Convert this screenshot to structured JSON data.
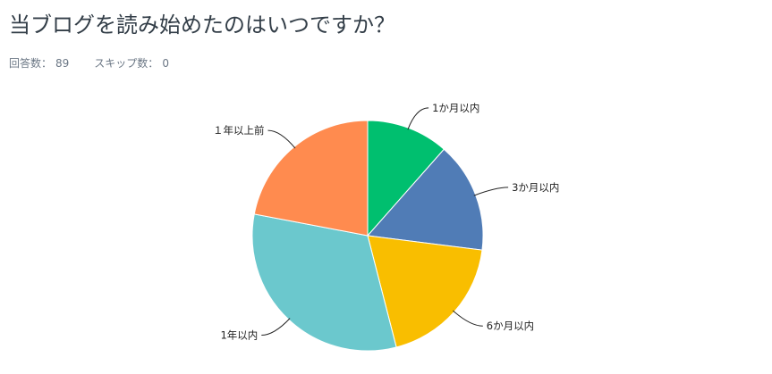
{
  "header": {
    "title": "当ブログを読み始めたのはいつですか？",
    "answered_label": "回答数：",
    "answered_value": "89",
    "skipped_label": "スキップ数：",
    "skipped_value": "0"
  },
  "chart_data": {
    "type": "pie",
    "title": "当ブログを読み始めたのはいつですか？",
    "start": "top",
    "direction": "clockwise",
    "slices": [
      {
        "label": "1か月以内",
        "value": 11.5,
        "color": "#00bf6f"
      },
      {
        "label": "3か月以内",
        "value": 15.5,
        "color": "#507cb6"
      },
      {
        "label": "6か月以内",
        "value": 19.0,
        "color": "#f9be00"
      },
      {
        "label": "1年以内",
        "value": 32.0,
        "color": "#6bc8cd"
      },
      {
        "label": "１年以上前",
        "value": 22.0,
        "color": "#ff8b4f"
      }
    ]
  }
}
